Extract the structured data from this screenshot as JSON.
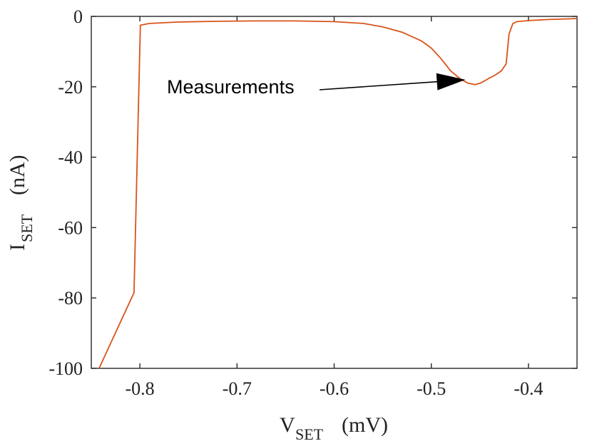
{
  "chart_data": {
    "type": "line",
    "title": "",
    "xlabel": {
      "main": "V",
      "sub": "SET",
      "unit": "(mV)"
    },
    "ylabel": {
      "main": "I",
      "sub": "SET",
      "unit": "(nA)"
    },
    "xlim": [
      -0.85,
      -0.35
    ],
    "ylim": [
      -100,
      0
    ],
    "xticks": [
      -0.8,
      -0.7,
      -0.6,
      -0.5,
      -0.4
    ],
    "xtick_labels": [
      "-0.8",
      "-0.7",
      "-0.6",
      "-0.5",
      "-0.4"
    ],
    "yticks": [
      0,
      -20,
      -40,
      -60,
      -80,
      -100
    ],
    "ytick_labels": [
      "0",
      "-20",
      "-40",
      "-60",
      "-80",
      "-100"
    ],
    "grid": false,
    "series": [
      {
        "name": "Measurements",
        "color": "#d95319",
        "x": [
          -0.842,
          -0.806,
          -0.7995,
          -0.79,
          -0.76,
          -0.72,
          -0.68,
          -0.64,
          -0.6,
          -0.57,
          -0.55,
          -0.53,
          -0.51,
          -0.5,
          -0.49,
          -0.48,
          -0.47,
          -0.462,
          -0.455,
          -0.45,
          -0.445,
          -0.44,
          -0.435,
          -0.428,
          -0.423,
          -0.42,
          -0.416,
          -0.412,
          -0.4,
          -0.38,
          -0.36,
          -0.35
        ],
        "y": [
          -100,
          -78.5,
          -2.5,
          -2.0,
          -1.6,
          -1.4,
          -1.3,
          -1.3,
          -1.5,
          -2.0,
          -3.0,
          -4.5,
          -7.0,
          -9.0,
          -12.0,
          -15.5,
          -17.8,
          -19.0,
          -19.4,
          -19.0,
          -18.3,
          -17.5,
          -16.8,
          -15.5,
          -13.5,
          -5.0,
          -2.0,
          -1.5,
          -1.2,
          -0.9,
          -0.7,
          -0.6
        ]
      }
    ],
    "annotations": [
      {
        "text": "Measurements",
        "arrow_to": {
          "x": -0.462,
          "y": -18.0
        }
      }
    ]
  }
}
